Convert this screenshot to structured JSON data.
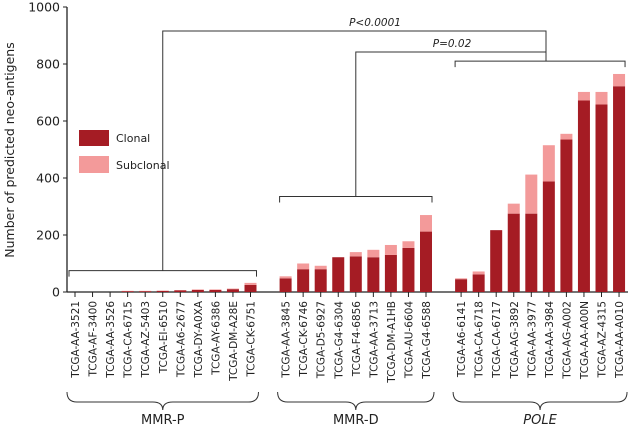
{
  "chart_data": {
    "type": "bar",
    "stacked": true,
    "title": "",
    "xlabel": "",
    "ylabel": "Number of predicted neo-antigens",
    "ylim": [
      0,
      1000
    ],
    "yticks": [
      "0",
      "200",
      "400",
      "600",
      "800",
      "1000"
    ],
    "legend": {
      "placement": "middle-left",
      "entries": [
        "Clonal",
        "Subclonal"
      ]
    },
    "colors": {
      "Clonal": "#a51c24",
      "Subclonal": "#f39a9a"
    },
    "groups": [
      {
        "name": "MMR-P",
        "italic": false,
        "categories": [
          "TCGA-AA-3521",
          "TCGA-AF-3400",
          "TCGA-AA-3526",
          "TCGA-CA-6715",
          "TCGA-AZ-5403",
          "TCGA-EI-6510",
          "TCGA-A6-2677",
          "TCGA-DY-A0XA",
          "TCGA-AY-6386",
          "TCGA-DM-A28E",
          "TCGA-CK-6751"
        ],
        "clonal": [
          0,
          0,
          0,
          3,
          3,
          4,
          6,
          7,
          7,
          10,
          25
        ],
        "subclonal": [
          0,
          0,
          0,
          1,
          1,
          1,
          1,
          2,
          2,
          2,
          7
        ]
      },
      {
        "name": "MMR-D",
        "italic": false,
        "categories": [
          "TCGA-AA-3845",
          "TCGA-CK-6746",
          "TCGA-D5-6927",
          "TCGA-G4-6304",
          "TCGA-F4-6856",
          "TCGA-AA-3713",
          "TCGA-DM-A1HB",
          "TCGA-AU-6604",
          "TCGA-G4-6588"
        ],
        "clonal": [
          48,
          80,
          80,
          122,
          125,
          122,
          130,
          155,
          212
        ],
        "subclonal": [
          7,
          20,
          12,
          0,
          15,
          26,
          35,
          23,
          58
        ]
      },
      {
        "name": "POLE",
        "italic": true,
        "categories": [
          "TCGA-A6-6141",
          "TCGA-CA-6718",
          "TCGA-CA-6717",
          "TCGA-AG-3892",
          "TCGA-AA-3977",
          "TCGA-AA-3984",
          "TCGA-AG-A002",
          "TCGA-AA-A00N",
          "TCGA-AZ-4315",
          "TCGA-AA-A010"
        ],
        "clonal": [
          45,
          62,
          217,
          275,
          275,
          388,
          535,
          672,
          658,
          722
        ],
        "subclonal": [
          3,
          10,
          0,
          35,
          137,
          127,
          20,
          30,
          44,
          43
        ]
      }
    ],
    "annotations": [
      {
        "label": "P<0.0001",
        "compare": [
          "MMR-P",
          "POLE"
        ]
      },
      {
        "label": "P=0.02",
        "compare": [
          "MMR-D",
          "POLE"
        ]
      }
    ]
  }
}
